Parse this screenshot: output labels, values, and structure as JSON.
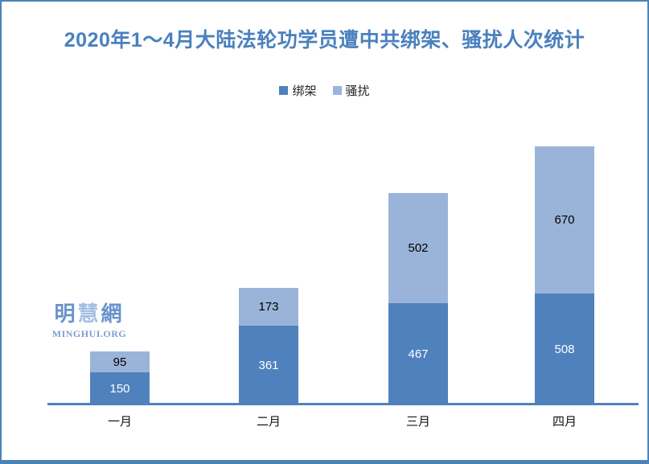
{
  "title": "2020年1～4月大陆法轮功学员遭中共绑架、骚扰人次统计",
  "logo": {
    "cjk_chars": [
      "明",
      "慧",
      "網"
    ],
    "latin": "MINGHUI.ORG"
  },
  "colors": {
    "abduction": "#4f81bd",
    "harassment": "#9ab4d9",
    "title": "#4a80be",
    "axis_line": "#4f81bd",
    "frame_border": "#4b83b7"
  },
  "chart_data": {
    "type": "bar",
    "stacked": true,
    "title": "2020年1～4月大陆法轮功学员遭中共绑架、骚扰人次统计",
    "categories": [
      "一月",
      "二月",
      "三月",
      "四月"
    ],
    "series": [
      {
        "name": "绑架",
        "color": "#4f81bd",
        "label_color": "#ffffff",
        "values": [
          150,
          361,
          467,
          508
        ]
      },
      {
        "name": "骚扰",
        "color": "#9ab4d9",
        "label_color": "#000000",
        "values": [
          95,
          173,
          502,
          670
        ]
      }
    ],
    "totals": [
      245,
      534,
      969,
      1178
    ],
    "xlabel": "",
    "ylabel": "",
    "ylim": [
      0,
      1250
    ],
    "grid": false,
    "y_axis_visible": false,
    "legend_position": "top",
    "value_labels": "inside-center"
  }
}
